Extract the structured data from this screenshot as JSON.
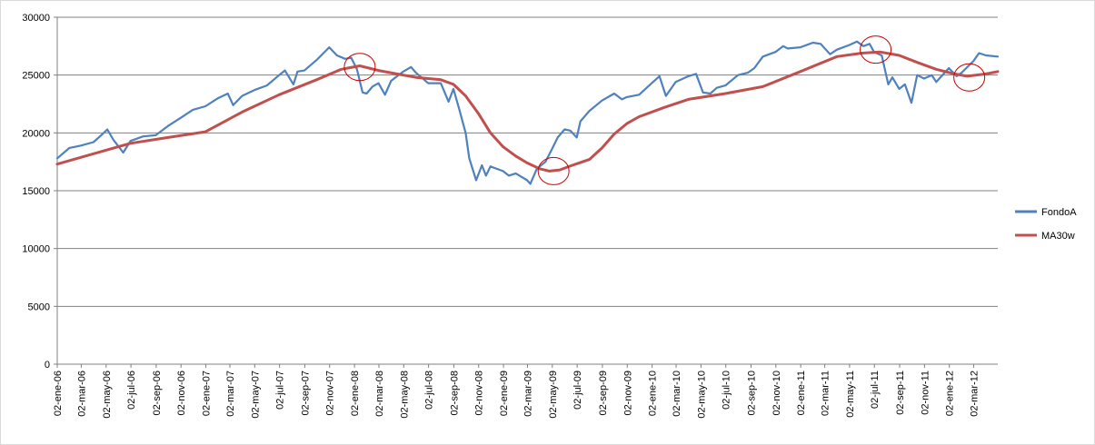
{
  "chart_data": {
    "type": "line",
    "title": "",
    "xlabel": "",
    "ylabel": "",
    "ylim": [
      0,
      30000
    ],
    "y_ticks": [
      0,
      5000,
      10000,
      15000,
      20000,
      25000,
      30000
    ],
    "y_tick_labels": [
      "0",
      "5000",
      "10000",
      "15000",
      "20000",
      "25000",
      "30000"
    ],
    "x_range": [
      "2006-01-02",
      "2012-04-30"
    ],
    "x_tick_labels": [
      "02-ene-06",
      "02-mar-06",
      "02-may-06",
      "02-jul-06",
      "02-sep-06",
      "02-nov-06",
      "02-ene-07",
      "02-mar-07",
      "02-may-07",
      "02-jul-07",
      "02-sep-07",
      "02-nov-07",
      "02-ene-08",
      "02-mar-08",
      "02-may-08",
      "02-jul-08",
      "02-sep-08",
      "02-nov-08",
      "02-ene-09",
      "02-mar-09",
      "02-may-09",
      "02-jul-09",
      "02-sep-09",
      "02-nov-09",
      "02-ene-10",
      "02-mar-10",
      "02-may-10",
      "02-jul-10",
      "02-sep-10",
      "02-nov-10",
      "02-ene-11",
      "02-mar-11",
      "02-may-11",
      "02-jul-11",
      "02-sep-11",
      "02-nov-11",
      "02-ene-12",
      "02-mar-12"
    ],
    "x_tick_dates": [
      "2006-01-02",
      "2006-03-02",
      "2006-05-02",
      "2006-07-02",
      "2006-09-02",
      "2006-11-02",
      "2007-01-02",
      "2007-03-02",
      "2007-05-02",
      "2007-07-02",
      "2007-09-02",
      "2007-11-02",
      "2008-01-02",
      "2008-03-02",
      "2008-05-02",
      "2008-07-02",
      "2008-09-02",
      "2008-11-02",
      "2009-01-02",
      "2009-03-02",
      "2009-05-02",
      "2009-07-02",
      "2009-09-02",
      "2009-11-02",
      "2010-01-02",
      "2010-03-02",
      "2010-05-02",
      "2010-07-02",
      "2010-09-02",
      "2010-11-02",
      "2011-01-02",
      "2011-03-02",
      "2011-05-02",
      "2011-07-02",
      "2011-09-02",
      "2011-11-02",
      "2012-01-02",
      "2012-03-02"
    ],
    "grid": true,
    "legend_position": "right",
    "series": [
      {
        "name": "FondoA",
        "color": "#4f81bd",
        "x": [
          "2006-01-02",
          "2006-02-01",
          "2006-03-01",
          "2006-04-01",
          "2006-04-20",
          "2006-05-05",
          "2006-05-20",
          "2006-06-13",
          "2006-07-01",
          "2006-08-01",
          "2006-09-01",
          "2006-10-01",
          "2006-11-01",
          "2006-12-01",
          "2007-01-01",
          "2007-02-01",
          "2007-02-25",
          "2007-03-10",
          "2007-04-01",
          "2007-05-01",
          "2007-06-01",
          "2007-07-01",
          "2007-07-15",
          "2007-08-05",
          "2007-08-15",
          "2007-09-01",
          "2007-10-01",
          "2007-11-01",
          "2007-11-20",
          "2007-12-10",
          "2007-12-25",
          "2008-01-08",
          "2008-01-22",
          "2008-02-01",
          "2008-02-15",
          "2008-03-01",
          "2008-03-17",
          "2008-04-01",
          "2008-05-01",
          "2008-05-20",
          "2008-06-01",
          "2008-07-01",
          "2008-08-01",
          "2008-08-20",
          "2008-09-01",
          "2008-09-15",
          "2008-10-01",
          "2008-10-10",
          "2008-10-27",
          "2008-11-10",
          "2008-11-20",
          "2008-12-01",
          "2009-01-01",
          "2009-01-15",
          "2009-02-01",
          "2009-02-15",
          "2009-03-01",
          "2009-03-09",
          "2009-03-25",
          "2009-04-15",
          "2009-05-01",
          "2009-05-15",
          "2009-06-01",
          "2009-06-15",
          "2009-07-01",
          "2009-07-10",
          "2009-08-01",
          "2009-09-01",
          "2009-10-01",
          "2009-10-20",
          "2009-11-01",
          "2009-12-01",
          "2010-01-01",
          "2010-01-20",
          "2010-02-05",
          "2010-03-01",
          "2010-04-01",
          "2010-04-20",
          "2010-05-07",
          "2010-05-25",
          "2010-06-10",
          "2010-07-01",
          "2010-08-01",
          "2010-08-25",
          "2010-09-10",
          "2010-10-01",
          "2010-11-01",
          "2010-11-20",
          "2010-12-01",
          "2011-01-01",
          "2011-02-01",
          "2011-02-20",
          "2011-03-15",
          "2011-04-01",
          "2011-05-01",
          "2011-05-20",
          "2011-06-05",
          "2011-06-20",
          "2011-07-01",
          "2011-07-20",
          "2011-08-05",
          "2011-08-15",
          "2011-09-01",
          "2011-09-15",
          "2011-10-01",
          "2011-10-15",
          "2011-11-01",
          "2011-11-20",
          "2011-12-01",
          "2012-01-01",
          "2012-01-20",
          "2012-02-01",
          "2012-03-01",
          "2012-03-15",
          "2012-04-01",
          "2012-04-30"
        ],
        "y": [
          17800,
          18700,
          18900,
          19200,
          19800,
          20300,
          19400,
          18300,
          19300,
          19700,
          19800,
          20600,
          21300,
          22000,
          22300,
          23000,
          23400,
          22400,
          23200,
          23700,
          24100,
          25000,
          25400,
          24200,
          25300,
          25400,
          26300,
          27400,
          26700,
          26400,
          26500,
          25500,
          23500,
          23400,
          24000,
          24300,
          23300,
          24500,
          25300,
          25700,
          25200,
          24300,
          24300,
          22700,
          23800,
          22100,
          20000,
          17800,
          15900,
          17200,
          16300,
          17100,
          16700,
          16300,
          16500,
          16200,
          15900,
          15600,
          16900,
          17500,
          18600,
          19600,
          20300,
          20200,
          19600,
          21000,
          21900,
          22800,
          23400,
          22900,
          23100,
          23300,
          24300,
          24900,
          23200,
          24400,
          24900,
          25100,
          23500,
          23400,
          23900,
          24100,
          25000,
          25200,
          25600,
          26600,
          27000,
          27500,
          27300,
          27400,
          27800,
          27700,
          26800,
          27200,
          27600,
          27900,
          27500,
          27700,
          27000,
          26700,
          24200,
          24800,
          23800,
          24200,
          22600,
          25000,
          24700,
          25000,
          24400,
          25600,
          24900,
          25200,
          26200,
          26900,
          26700,
          26600
        ]
      },
      {
        "name": "MA30w",
        "color": "#c0504d",
        "x": [
          "2006-01-02",
          "2006-04-01",
          "2006-07-01",
          "2006-10-01",
          "2007-01-01",
          "2007-04-01",
          "2007-07-01",
          "2007-10-01",
          "2007-12-01",
          "2008-01-15",
          "2008-03-01",
          "2008-04-15",
          "2008-06-01",
          "2008-08-01",
          "2008-09-01",
          "2008-10-01",
          "2008-11-01",
          "2008-12-01",
          "2009-01-01",
          "2009-02-01",
          "2009-03-01",
          "2009-04-01",
          "2009-04-25",
          "2009-05-20",
          "2009-06-20",
          "2009-08-01",
          "2009-09-01",
          "2009-10-01",
          "2009-11-01",
          "2009-12-01",
          "2010-02-01",
          "2010-04-01",
          "2010-07-01",
          "2010-10-01",
          "2011-01-01",
          "2011-04-01",
          "2011-06-01",
          "2011-07-15",
          "2011-09-01",
          "2011-10-15",
          "2011-12-01",
          "2012-01-15",
          "2012-02-15",
          "2012-04-01",
          "2012-04-30"
        ],
        "y": [
          17300,
          18200,
          19100,
          19600,
          20100,
          21800,
          23300,
          24600,
          25500,
          25800,
          25400,
          25100,
          24800,
          24600,
          24200,
          23200,
          21700,
          20000,
          18800,
          18000,
          17400,
          16900,
          16700,
          16800,
          17200,
          17700,
          18700,
          19900,
          20800,
          21400,
          22200,
          22900,
          23400,
          24000,
          25300,
          26600,
          26900,
          27000,
          26700,
          26100,
          25500,
          25100,
          24900,
          25100,
          25300
        ]
      }
    ],
    "annotations": [
      {
        "shape": "ellipse",
        "color": "#cc0000",
        "x": "2008-01-15",
        "y": 25700
      },
      {
        "shape": "ellipse",
        "color": "#cc0000",
        "x": "2009-05-05",
        "y": 16700
      },
      {
        "shape": "ellipse",
        "color": "#cc0000",
        "x": "2011-07-05",
        "y": 27200
      },
      {
        "shape": "ellipse",
        "color": "#cc0000",
        "x": "2012-02-20",
        "y": 24800
      }
    ]
  }
}
